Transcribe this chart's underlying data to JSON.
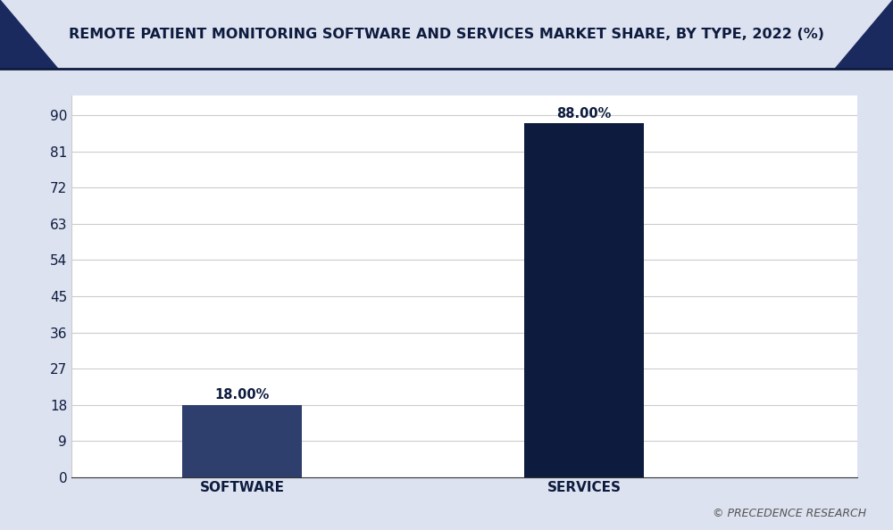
{
  "title": "REMOTE PATIENT MONITORING SOFTWARE AND SERVICES MARKET SHARE, BY TYPE, 2022 (%)",
  "categories": [
    "SOFTWARE",
    "SERVICES"
  ],
  "values": [
    18.0,
    88.0
  ],
  "bar_colors": [
    "#2e3f6e",
    "#0d1b3e"
  ],
  "value_labels": [
    "18.00%",
    "88.00%"
  ],
  "yticks": [
    0,
    9,
    18,
    27,
    36,
    45,
    54,
    63,
    72,
    81,
    90
  ],
  "ylim": [
    0,
    95
  ],
  "background_color": "#f0f2f8",
  "plot_bg_color": "#ffffff",
  "title_color": "#0d1b3e",
  "title_fontsize": 11.5,
  "tick_color": "#0d1b3e",
  "watermark": "© PRECEDENCE RESEARCH",
  "grid_color": "#cccccc",
  "bar_width": 0.13,
  "x_positions": [
    0.28,
    0.62
  ],
  "xlim": [
    0.05,
    0.85
  ],
  "corner_color": "#1a2a5e",
  "title_bg_color": "#ffffff",
  "outer_bg_color": "#dde2f0"
}
